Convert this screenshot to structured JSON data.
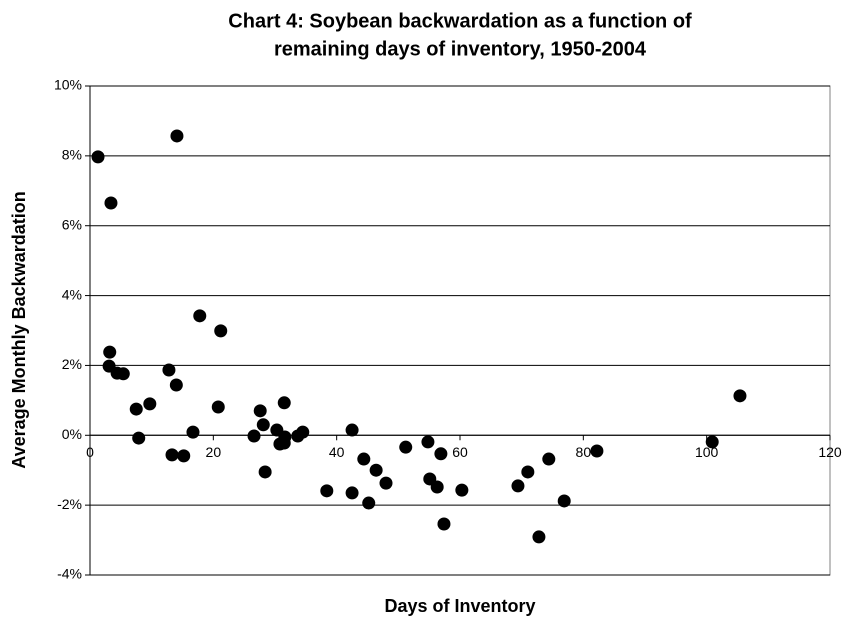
{
  "chart_data": {
    "type": "scatter",
    "title": [
      "Chart 4: Soybean backwardation as a function of",
      "remaining days of inventory, 1950-2004"
    ],
    "x_label": "Days of Inventory",
    "y_label": "Average Monthly Backwardation",
    "color": "#000000",
    "grid": true,
    "xlim": [
      0,
      120
    ],
    "xticks": [
      0,
      20,
      40,
      60,
      80,
      100,
      120
    ],
    "ylim": [
      -4,
      10
    ],
    "yticks": [
      {
        "value": -4,
        "label": "-4%"
      },
      {
        "value": -2,
        "label": "-2%"
      },
      {
        "value": 0,
        "label": "0%"
      },
      {
        "value": 2,
        "label": "2%"
      },
      {
        "value": 4,
        "label": "4%"
      },
      {
        "value": 6,
        "label": "6%"
      },
      {
        "value": 8,
        "label": "8%"
      },
      {
        "value": 10,
        "label": "10%"
      }
    ],
    "x": [
      1.3,
      3.4,
      14.1,
      3.2,
      3.1,
      4.4,
      5.4,
      7.5,
      9.7,
      7.9,
      12.8,
      14.0,
      13.3,
      15.2,
      16.7,
      17.8,
      21.2,
      20.8,
      26.6,
      27.6,
      28.1,
      28.4,
      30.3,
      30.8,
      31.5,
      31.5,
      31.6,
      33.7,
      34.5,
      38.4,
      42.5,
      42.5,
      44.4,
      45.2,
      46.4,
      48.0,
      51.2,
      54.8,
      55.1,
      56.3,
      56.9,
      57.4,
      60.3,
      69.4,
      71.0,
      72.8,
      74.4,
      76.9,
      82.2,
      100.9,
      105.4
    ],
    "values": [
      7.97,
      6.65,
      8.57,
      2.38,
      1.98,
      1.78,
      1.76,
      0.75,
      0.9,
      -0.08,
      1.87,
      1.44,
      -0.56,
      -0.59,
      0.09,
      3.42,
      2.99,
      0.81,
      -0.02,
      0.7,
      0.3,
      -1.05,
      0.15,
      -0.25,
      -0.22,
      0.93,
      -0.05,
      -0.02,
      0.09,
      -1.59,
      0.15,
      -1.65,
      -0.68,
      -1.94,
      -1.0,
      -1.37,
      -0.34,
      -0.19,
      -1.25,
      -1.48,
      -0.53,
      -2.54,
      -1.57,
      -1.45,
      -1.05,
      -2.91,
      -0.68,
      -1.88,
      -0.45,
      -0.19,
      1.13
    ]
  }
}
